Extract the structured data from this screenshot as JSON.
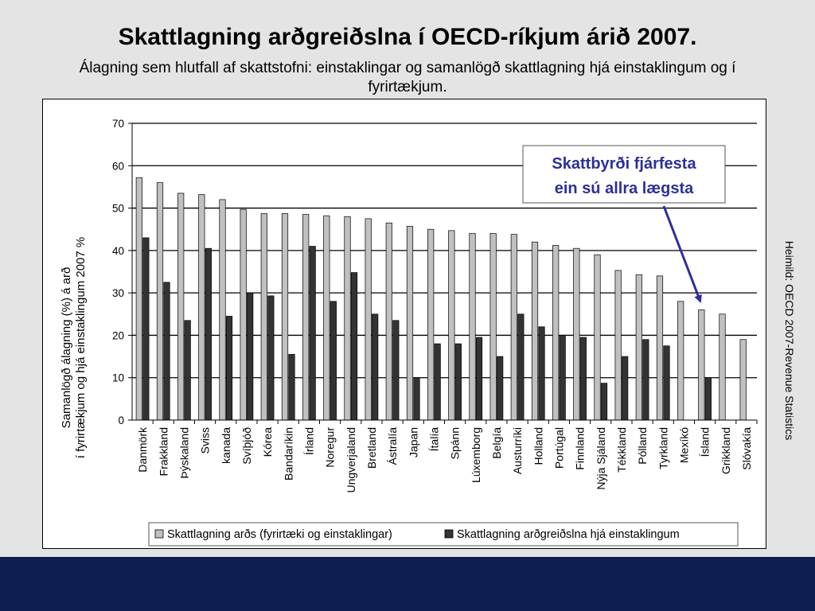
{
  "slide": {
    "title": "Skattlagning arðgreiðslna í OECD-ríkjum árið 2007.",
    "subtitle": "Álagning sem hlutfall af skattstofni: einstaklingar og samanlögð skattlagning hjá einstaklingum og í fyrirtækjum.",
    "source": "Heimild: OECD 2007-Revenue Statistics"
  },
  "colors": {
    "background": "#e4e4e4",
    "bottom_band": "#0d1f4e",
    "series_combined": "#c0c0c0",
    "series_individual": "#333333",
    "annotation": "#2d2f9a"
  },
  "chart_data": {
    "type": "bar",
    "ylabel_line1": "Samanlögð álagning (%) á arð",
    "ylabel_line2": "í fyrirtækjum og hjá einstaklingum 2007 %",
    "ylim": [
      0,
      70
    ],
    "yticks": [
      0,
      10,
      20,
      30,
      40,
      50,
      60,
      70
    ],
    "grid": true,
    "legend_position": "bottom",
    "categories": [
      "Danmörk",
      "Frakkland",
      "Þýskaland",
      "Sviss",
      "kanada",
      "Svíþjóð",
      "Kórea",
      "Bandaríkin",
      "Írland",
      "Noregur",
      "Ungverjaland",
      "Bretland",
      "Ástralía",
      "Japan",
      "Ítalía",
      "Spánn",
      "Lúxemborg",
      "Belgía",
      "Austurríki",
      "Holland",
      "Portúgal",
      "Finnland",
      "Nýja Sjáland",
      "Tékkland",
      "Pólland",
      "Tyrkland",
      "Mexíkó",
      "Ísland",
      "Grikkland",
      "Slóvakía"
    ],
    "series": [
      {
        "name": "Skattlagning arðs (fyrirtæki og einstaklingar)",
        "values": [
          57.2,
          56,
          53.5,
          53.2,
          52,
          49.7,
          48.7,
          48.7,
          48.5,
          48.2,
          48,
          47.5,
          46.5,
          45.7,
          45,
          44.7,
          44,
          44,
          43.8,
          42,
          41.2,
          40.5,
          39,
          35.3,
          34.3,
          34,
          28,
          26,
          25,
          19
        ]
      },
      {
        "name": "Skattlagning arðgreiðslna hjá einstaklingum",
        "values": [
          43,
          32.5,
          23.5,
          40.5,
          24.5,
          30,
          29.3,
          15.5,
          41,
          28,
          34.8,
          25,
          23.5,
          10,
          18,
          18,
          19.5,
          15,
          25,
          22,
          20,
          19.5,
          8.7,
          15,
          19,
          17.5,
          0,
          10,
          0,
          0
        ]
      }
    ],
    "annotation": {
      "line1": "Skattbyrði fjárfesta",
      "line2": "ein sú allra lægsta",
      "target_category": "Ísland"
    }
  }
}
